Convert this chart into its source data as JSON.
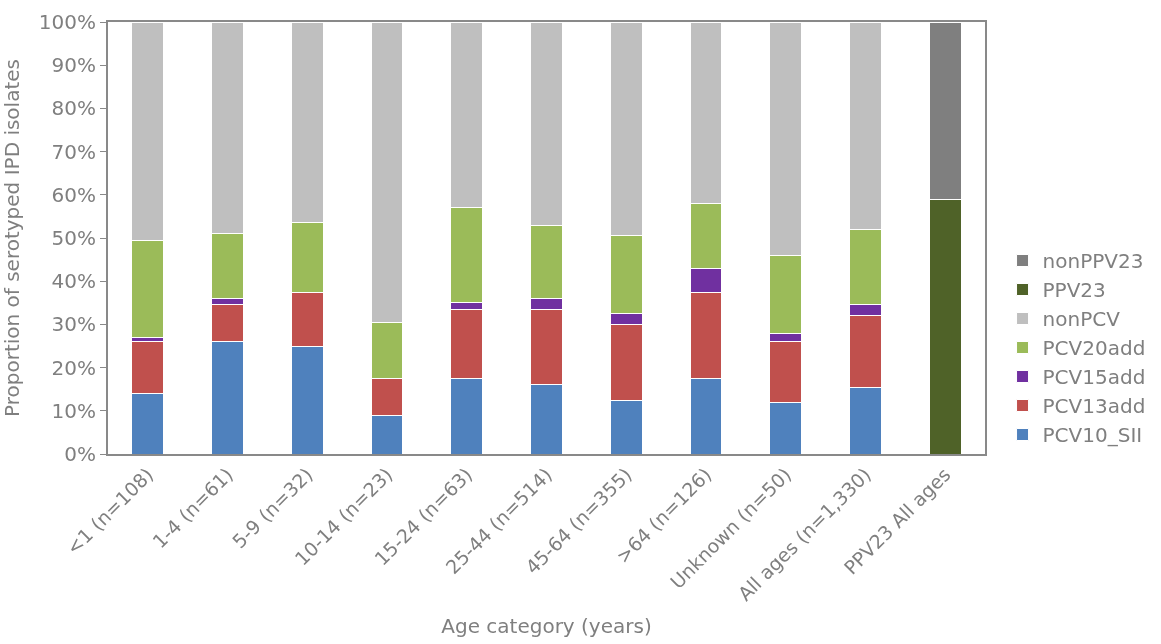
{
  "chart_data": {
    "type": "bar",
    "stacked": true,
    "xlabel": "Age category (years)",
    "ylabel": "Proportion of serotyped IPD isolates",
    "categories": [
      "<1 (n=108)",
      "1-4 (n=61)",
      "5-9 (n=32)",
      "10-14 (n=23)",
      "15-24 (n=63)",
      "25-44 (n=514)",
      "45-64 (n=355)",
      ">64 (n=126)",
      "Unknown (n=50)",
      "All ages (n=1,330)",
      "PPV23 All ages"
    ],
    "series": [
      {
        "name": "PCV10_SII",
        "color": "#4f81bd",
        "values": [
          14,
          26,
          25,
          9,
          17.5,
          16,
          12.5,
          17.5,
          12,
          15.5,
          null
        ]
      },
      {
        "name": "PCV13add",
        "color": "#c0504d",
        "values": [
          12,
          8.5,
          12.5,
          8.5,
          16,
          17.5,
          17.5,
          20,
          14,
          16.5,
          null
        ]
      },
      {
        "name": "PCV15add",
        "color": "#7030a0",
        "values": [
          1,
          1.5,
          0,
          0,
          1.5,
          2.5,
          2.5,
          5.5,
          2,
          2.5,
          null
        ]
      },
      {
        "name": "PCV20add",
        "color": "#9bbb59",
        "values": [
          22.5,
          15,
          16,
          13,
          22,
          17,
          18,
          15,
          18,
          17.5,
          null
        ]
      },
      {
        "name": "nonPCV",
        "color": "#bfbfbf",
        "values": [
          50.5,
          49,
          46.5,
          69.5,
          43,
          47,
          49.5,
          42,
          54,
          48,
          null
        ]
      },
      {
        "name": "PPV23",
        "color": "#4f6228",
        "values": [
          null,
          null,
          null,
          null,
          null,
          null,
          null,
          null,
          null,
          null,
          59
        ]
      },
      {
        "name": "nonPPV23",
        "color": "#7f7f7f",
        "values": [
          null,
          null,
          null,
          null,
          null,
          null,
          null,
          null,
          null,
          null,
          41
        ]
      }
    ],
    "ylim": [
      0,
      100
    ],
    "yticks": [
      {
        "value": 0,
        "label": "0%"
      },
      {
        "value": 10,
        "label": "10%"
      },
      {
        "value": 20,
        "label": "20%"
      },
      {
        "value": 30,
        "label": "30%"
      },
      {
        "value": 40,
        "label": "40%"
      },
      {
        "value": 50,
        "label": "50%"
      },
      {
        "value": 60,
        "label": "60%"
      },
      {
        "value": 70,
        "label": "70%"
      },
      {
        "value": 80,
        "label": "80%"
      },
      {
        "value": 90,
        "label": "90%"
      },
      {
        "value": 100,
        "label": "100%"
      }
    ],
    "legend": "right"
  }
}
